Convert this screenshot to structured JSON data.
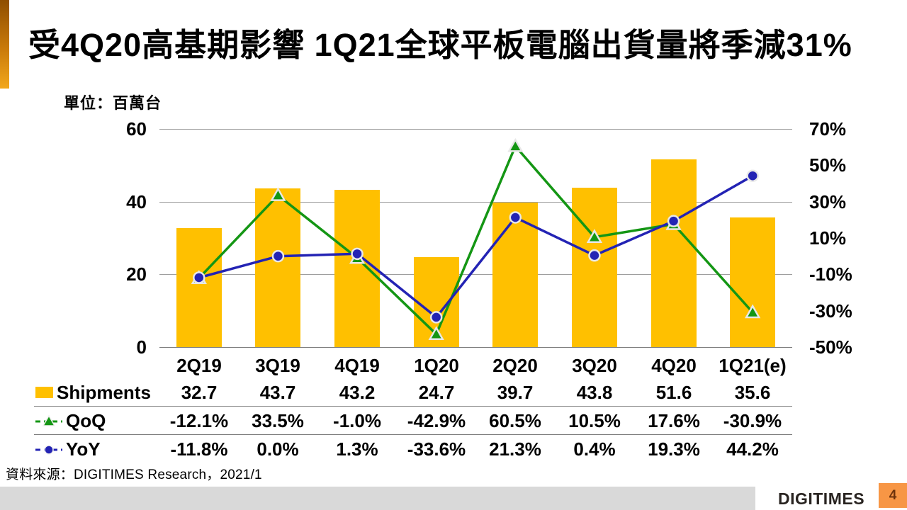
{
  "slide": {
    "title": "受4Q20高基期影響 1Q21全球平板電腦出貨量將季減31%",
    "unit_label": "單位：百萬台",
    "source": "資料來源：DIGITIMES Research，2021/1",
    "logo_text": "DIGITIMES",
    "page_number": "4"
  },
  "chart_data": {
    "type": "bar",
    "subtype": "combo-bar-line",
    "categories": [
      "2Q19",
      "3Q19",
      "4Q19",
      "1Q20",
      "2Q20",
      "3Q20",
      "4Q20",
      "1Q21(e)"
    ],
    "series": [
      {
        "name": "Shipments",
        "type": "bar",
        "axis": "left",
        "color": "#FFC000",
        "values": [
          32.7,
          43.7,
          43.2,
          24.7,
          39.7,
          43.8,
          51.6,
          35.6
        ]
      },
      {
        "name": "QoQ",
        "type": "line",
        "axis": "right",
        "marker": "triangle",
        "color": "#149614",
        "values": [
          -12.1,
          33.5,
          -1.0,
          -42.9,
          60.5,
          10.5,
          17.6,
          -30.9
        ]
      },
      {
        "name": "YoY",
        "type": "line",
        "axis": "right",
        "marker": "circle",
        "color": "#2323B4",
        "values": [
          -11.8,
          0.0,
          1.3,
          -33.6,
          21.3,
          0.4,
          19.3,
          44.2
        ]
      }
    ],
    "left_axis": {
      "ticks": [
        60,
        40,
        20,
        0
      ],
      "labels": [
        "60",
        "40",
        "20",
        "0"
      ],
      "range": [
        0,
        60
      ]
    },
    "right_axis": {
      "ticks": [
        70,
        50,
        30,
        10,
        -10,
        -30,
        -50
      ],
      "labels": [
        "70%",
        "50%",
        "30%",
        "10%",
        "-10%",
        "-30%",
        "-50%"
      ],
      "range": [
        -50,
        70
      ]
    },
    "grid": true,
    "legend_position": "table-left",
    "marker_outline": "#e8e8e8"
  },
  "table": {
    "rows": [
      {
        "label": "Shipments",
        "values": [
          "32.7",
          "43.7",
          "43.2",
          "24.7",
          "39.7",
          "43.8",
          "51.6",
          "35.6"
        ]
      },
      {
        "label": "QoQ",
        "values": [
          "-12.1%",
          "33.5%",
          "-1.0%",
          "-42.9%",
          "60.5%",
          "10.5%",
          "17.6%",
          "-30.9%"
        ]
      },
      {
        "label": "YoY",
        "values": [
          "-11.8%",
          "0.0%",
          "1.3%",
          "-33.6%",
          "21.3%",
          "0.4%",
          "19.3%",
          "44.2%"
        ]
      }
    ]
  }
}
